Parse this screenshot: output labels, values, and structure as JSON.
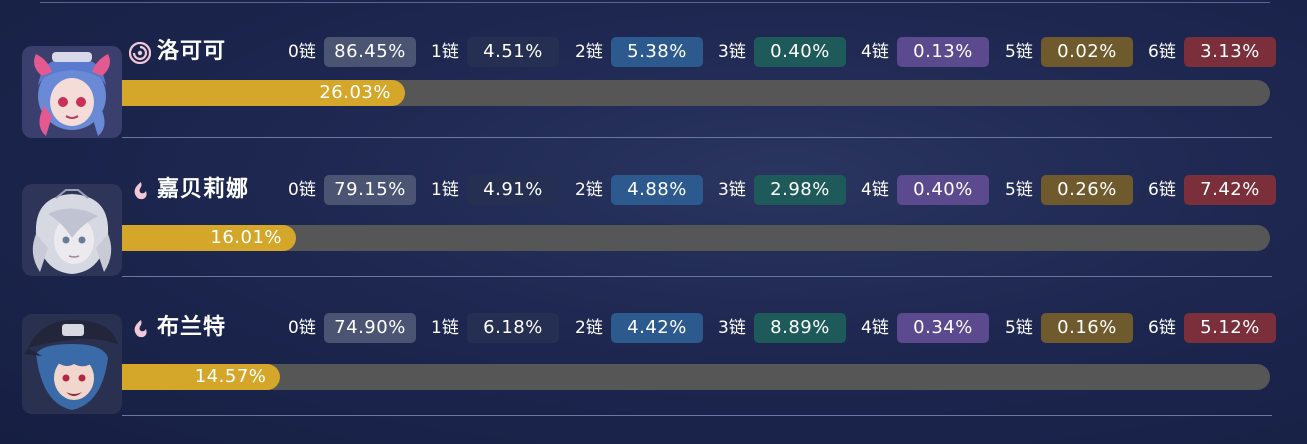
{
  "characters": [
    {
      "name": "洛可可",
      "element_icon": "havoc-swirl-icon",
      "accent": "#e8a0c0",
      "usage_percent": "26.03%",
      "usage_value": 26.03,
      "chains": [
        {
          "label": "0链",
          "value": "86.45%"
        },
        {
          "label": "1链",
          "value": "4.51%"
        },
        {
          "label": "2链",
          "value": "5.38%"
        },
        {
          "label": "3链",
          "value": "0.40%"
        },
        {
          "label": "4链",
          "value": "0.13%"
        },
        {
          "label": "5链",
          "value": "0.02%"
        },
        {
          "label": "6链",
          "value": "3.13%"
        }
      ]
    },
    {
      "name": "嘉贝莉娜",
      "element_icon": "fusion-flame-icon",
      "accent": "#c9ccd6",
      "usage_percent": "16.01%",
      "usage_value": 16.01,
      "chains": [
        {
          "label": "0链",
          "value": "79.15%"
        },
        {
          "label": "1链",
          "value": "4.91%"
        },
        {
          "label": "2链",
          "value": "4.88%"
        },
        {
          "label": "3链",
          "value": "2.98%"
        },
        {
          "label": "4链",
          "value": "0.40%"
        },
        {
          "label": "5链",
          "value": "0.26%"
        },
        {
          "label": "6链",
          "value": "7.42%"
        }
      ]
    },
    {
      "name": "布兰特",
      "element_icon": "fusion-flame-icon",
      "accent": "#4a7ab0",
      "usage_percent": "14.57%",
      "usage_value": 14.57,
      "chains": [
        {
          "label": "0链",
          "value": "74.90%"
        },
        {
          "label": "1链",
          "value": "6.18%"
        },
        {
          "label": "2链",
          "value": "4.42%"
        },
        {
          "label": "3链",
          "value": "8.89%"
        },
        {
          "label": "4链",
          "value": "0.34%"
        },
        {
          "label": "5链",
          "value": "0.16%"
        },
        {
          "label": "6链",
          "value": "5.12%"
        }
      ]
    }
  ],
  "colors": {
    "bar_fill": "#d4a72a",
    "bar_track": "#565656",
    "chain_0": "#4b5573",
    "chain_1": "#252f52",
    "chain_2": "#2d5a8e",
    "chain_3": "#1f5a5a",
    "chain_4": "#5b4a8e",
    "chain_5": "#6e5a2c",
    "chain_6": "#7a2f3a"
  }
}
